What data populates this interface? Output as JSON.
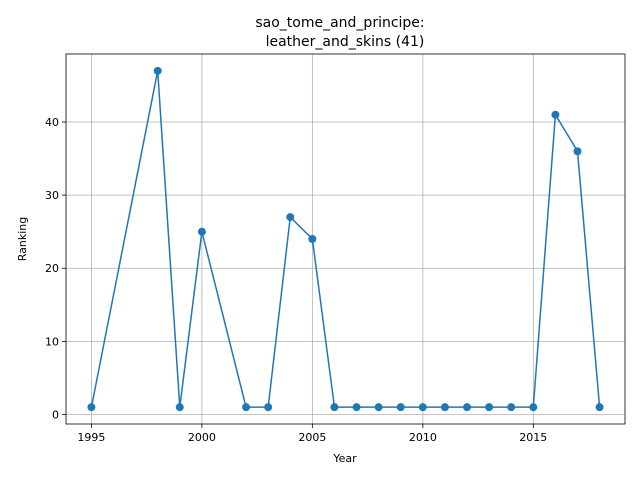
{
  "chart_data": {
    "type": "line",
    "title_line1": "sao_tome_and_principe:",
    "title_line2": "leather_and_skins (41)",
    "xlabel": "Year",
    "ylabel": "Ranking",
    "xlim": [
      1993.85,
      2019.15
    ],
    "ylim": [
      -1.3,
      49.3
    ],
    "xticks": [
      1995,
      2000,
      2005,
      2010,
      2015
    ],
    "yticks": [
      0,
      10,
      20,
      30,
      40
    ],
    "grid": true,
    "series": [
      {
        "color": "#1f77b4",
        "x": [
          1995,
          1998,
          1999,
          2000,
          2002,
          2003,
          2004,
          2005,
          2006,
          2007,
          2008,
          2009,
          2010,
          2011,
          2012,
          2013,
          2014,
          2015,
          2016,
          2017,
          2018
        ],
        "y": [
          1,
          47,
          1,
          25,
          1,
          1,
          27,
          24,
          1,
          1,
          1,
          1,
          1,
          1,
          1,
          1,
          1,
          1,
          41,
          36,
          1
        ]
      }
    ]
  }
}
